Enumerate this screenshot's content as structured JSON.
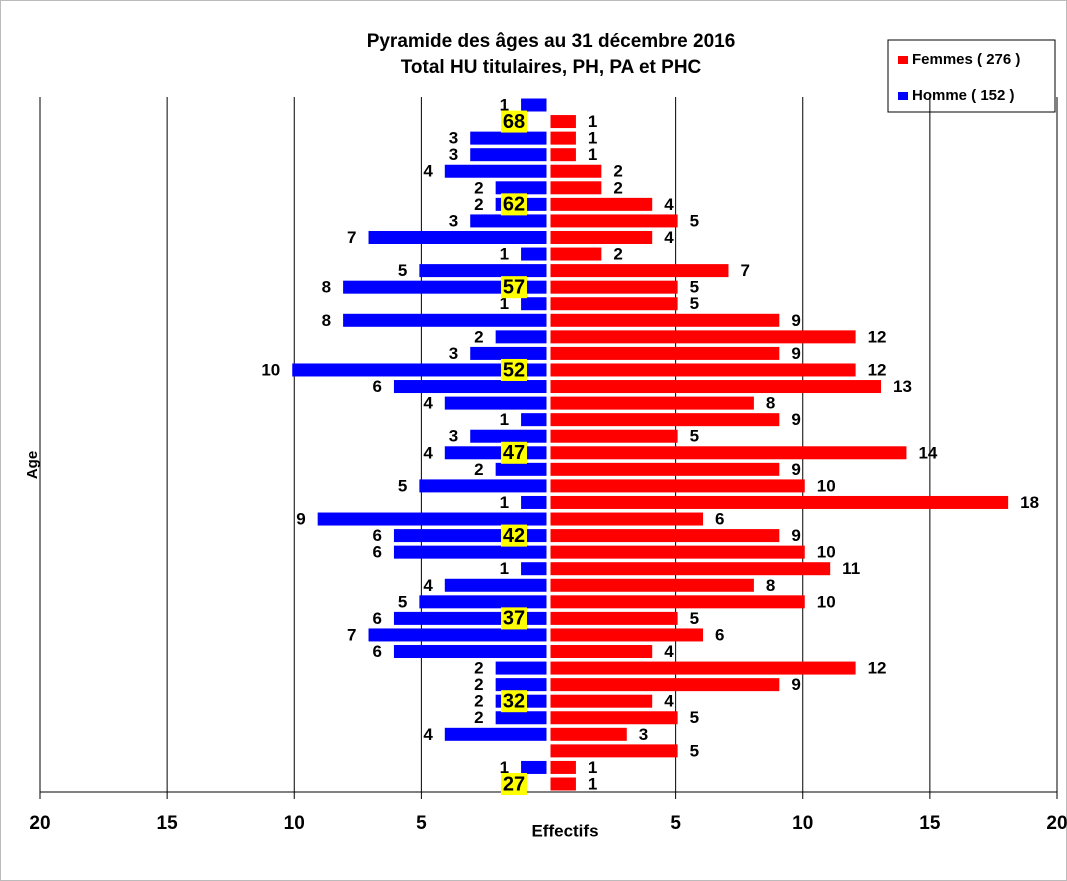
{
  "chart_data": {
    "type": "pyramid",
    "title": "Pyramide des âges au 31 décembre 2016",
    "subtitle": "Total HU titulaires, PH, PA et PHC",
    "y_label": "Age",
    "x_label": "Effectifs",
    "categories": [
      "27",
      null,
      null,
      null,
      null,
      "32",
      null,
      null,
      null,
      null,
      "37",
      null,
      null,
      null,
      null,
      "42",
      null,
      null,
      null,
      null,
      "47",
      null,
      null,
      null,
      null,
      "52",
      null,
      null,
      null,
      null,
      "57",
      null,
      null,
      null,
      null,
      "62",
      null,
      null,
      null,
      null,
      "68",
      null
    ],
    "series": [
      {
        "name": "Femmes ( 276 )",
        "color": "#ff0000",
        "values": [
          1,
          1,
          5,
          3,
          5,
          4,
          9,
          12,
          4,
          6,
          5,
          10,
          8,
          11,
          10,
          9,
          6,
          18,
          10,
          9,
          14,
          5,
          9,
          8,
          13,
          12,
          9,
          12,
          9,
          5,
          5,
          7,
          2,
          4,
          5,
          4,
          2,
          2,
          1,
          1,
          1,
          null
        ]
      },
      {
        "name": "Homme ( 152 )",
        "color": "#0000ff",
        "values": [
          null,
          1,
          null,
          4,
          2,
          2,
          2,
          2,
          6,
          7,
          6,
          5,
          4,
          1,
          6,
          6,
          9,
          1,
          5,
          2,
          4,
          3,
          1,
          4,
          6,
          10,
          3,
          2,
          8,
          1,
          8,
          5,
          1,
          7,
          3,
          2,
          2,
          4,
          3,
          3,
          null,
          1
        ]
      }
    ],
    "xlim": [
      -20,
      20
    ],
    "xticks": [
      {
        "value": -20,
        "label": "20"
      },
      {
        "value": -15,
        "label": "15"
      },
      {
        "value": -10,
        "label": "10"
      },
      {
        "value": -5,
        "label": "5"
      },
      5,
      10,
      15,
      20
    ],
    "grid": true,
    "legend": "top-right"
  }
}
